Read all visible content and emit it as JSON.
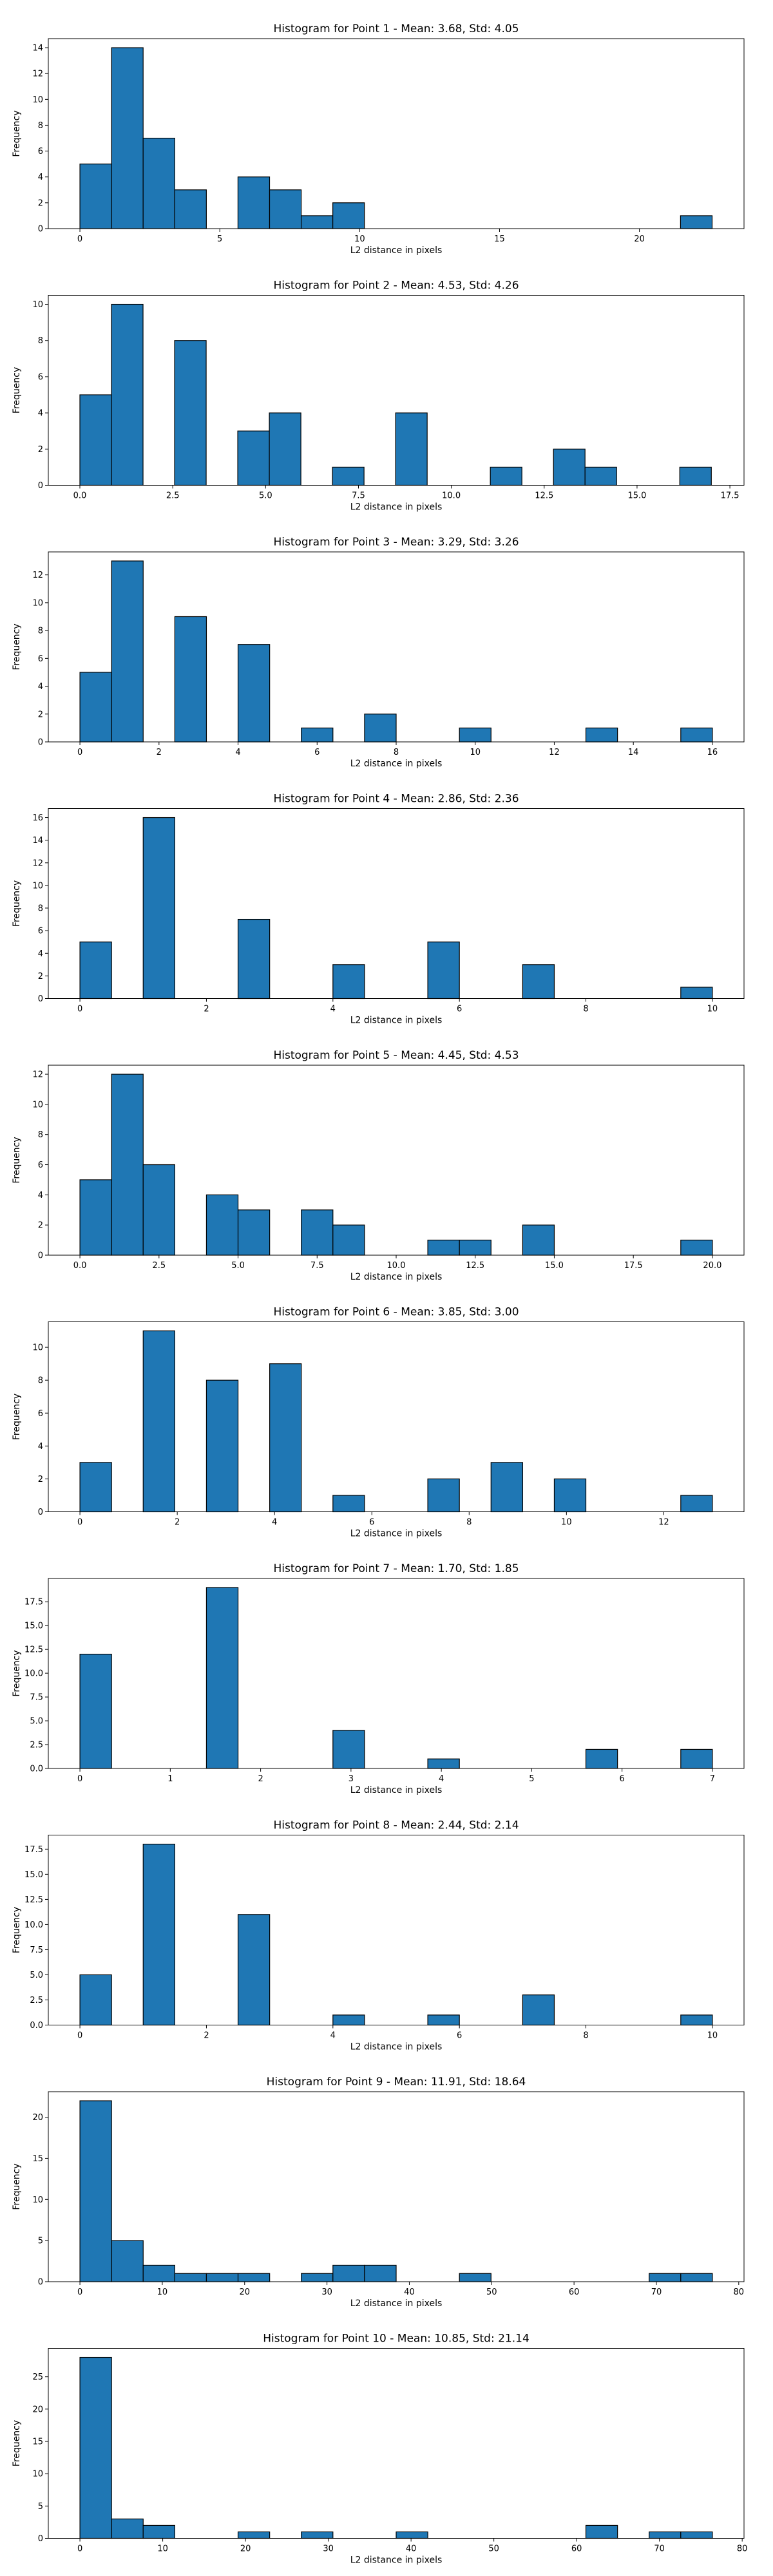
{
  "figure": {
    "background": "#ffffff",
    "bar_color": "#1f77b4",
    "edge_color": "#000000"
  },
  "chart_data": [
    {
      "type": "bar",
      "title": "Histogram for Point 1 - Mean: 3.68, Std: 4.05",
      "xlabel": "L2 distance in pixels",
      "ylabel": "Frequency",
      "xlim": [
        -1.13,
        23.74
      ],
      "ylim": [
        0,
        14.7
      ],
      "xticks": [
        0,
        5,
        10,
        15,
        20
      ],
      "xtick_labels": [
        "0",
        "5",
        "10",
        "15",
        "20"
      ],
      "yticks": [
        0,
        2,
        4,
        6,
        8,
        10,
        12,
        14
      ],
      "ytick_labels": [
        "0",
        "2",
        "4",
        "6",
        "8",
        "10",
        "12",
        "14"
      ],
      "bins": [
        [
          0,
          1.13,
          5
        ],
        [
          1.13,
          2.26,
          14
        ],
        [
          2.26,
          3.39,
          7
        ],
        [
          3.39,
          4.52,
          3
        ],
        [
          5.65,
          6.78,
          4
        ],
        [
          6.78,
          7.91,
          3
        ],
        [
          7.91,
          9.04,
          1
        ],
        [
          9.04,
          10.17,
          2
        ],
        [
          21.47,
          22.6,
          1
        ]
      ]
    },
    {
      "type": "bar",
      "title": "Histogram for Point 2 - Mean: 4.53, Std: 4.26",
      "xlabel": "L2 distance in pixels",
      "ylabel": "Frequency",
      "xlim": [
        -0.85,
        17.88
      ],
      "ylim": [
        0,
        10.5
      ],
      "xticks": [
        0,
        2.5,
        5,
        7.5,
        10,
        12.5,
        15,
        17.5
      ],
      "xtick_labels": [
        "0.0",
        "2.5",
        "5.0",
        "7.5",
        "10.0",
        "12.5",
        "15.0",
        "17.5"
      ],
      "yticks": [
        0,
        2,
        4,
        6,
        8,
        10
      ],
      "ytick_labels": [
        "0",
        "2",
        "4",
        "6",
        "8",
        "10"
      ],
      "bins": [
        [
          0,
          0.85,
          5
        ],
        [
          0.85,
          1.7,
          10
        ],
        [
          2.55,
          3.4,
          8
        ],
        [
          4.25,
          5.1,
          3
        ],
        [
          5.1,
          5.95,
          4
        ],
        [
          6.8,
          7.65,
          1
        ],
        [
          8.5,
          9.35,
          4
        ],
        [
          11.05,
          11.9,
          1
        ],
        [
          12.75,
          13.6,
          2
        ],
        [
          13.6,
          14.45,
          1
        ],
        [
          16.15,
          17.0,
          1
        ]
      ]
    },
    {
      "type": "bar",
      "title": "Histogram for Point 3 - Mean: 3.29, Std: 3.26",
      "xlabel": "L2 distance in pixels",
      "ylabel": "Frequency",
      "xlim": [
        -0.8,
        16.8
      ],
      "ylim": [
        0,
        13.65
      ],
      "xticks": [
        0,
        2,
        4,
        6,
        8,
        10,
        12,
        14,
        16
      ],
      "xtick_labels": [
        "0",
        "2",
        "4",
        "6",
        "8",
        "10",
        "12",
        "14",
        "16"
      ],
      "yticks": [
        0,
        2,
        4,
        6,
        8,
        10,
        12
      ],
      "ytick_labels": [
        "0",
        "2",
        "4",
        "6",
        "8",
        "10",
        "12"
      ],
      "bins": [
        [
          0,
          0.8,
          5
        ],
        [
          0.8,
          1.6,
          13
        ],
        [
          2.4,
          3.2,
          9
        ],
        [
          4.0,
          4.8,
          7
        ],
        [
          5.6,
          6.4,
          1
        ],
        [
          7.2,
          8.0,
          2
        ],
        [
          9.6,
          10.4,
          1
        ],
        [
          12.8,
          13.6,
          1
        ],
        [
          15.2,
          16.0,
          1
        ]
      ]
    },
    {
      "type": "bar",
      "title": "Histogram for Point 4 - Mean: 2.86, Std: 2.36",
      "xlabel": "L2 distance in pixels",
      "ylabel": "Frequency",
      "xlim": [
        -0.5,
        10.5
      ],
      "ylim": [
        0,
        16.8
      ],
      "xticks": [
        0,
        2,
        4,
        6,
        8,
        10
      ],
      "xtick_labels": [
        "0",
        "2",
        "4",
        "6",
        "8",
        "10"
      ],
      "yticks": [
        0,
        2,
        4,
        6,
        8,
        10,
        12,
        14,
        16
      ],
      "ytick_labels": [
        "0",
        "2",
        "4",
        "6",
        "8",
        "10",
        "12",
        "14",
        "16"
      ],
      "bins": [
        [
          0,
          0.5,
          5
        ],
        [
          1.0,
          1.5,
          16
        ],
        [
          2.5,
          3.0,
          7
        ],
        [
          4.0,
          4.5,
          3
        ],
        [
          5.5,
          6.0,
          5
        ],
        [
          7.0,
          7.5,
          3
        ],
        [
          9.5,
          10.0,
          1
        ]
      ]
    },
    {
      "type": "bar",
      "title": "Histogram for Point 5 - Mean: 4.45, Std: 4.53",
      "xlabel": "L2 distance in pixels",
      "ylabel": "Frequency",
      "xlim": [
        -1.0,
        21.0
      ],
      "ylim": [
        0,
        12.6
      ],
      "xticks": [
        0,
        2.5,
        5,
        7.5,
        10,
        12.5,
        15,
        17.5,
        20
      ],
      "xtick_labels": [
        "0.0",
        "2.5",
        "5.0",
        "7.5",
        "10.0",
        "12.5",
        "15.0",
        "17.5",
        "20.0"
      ],
      "yticks": [
        0,
        2,
        4,
        6,
        8,
        10,
        12
      ],
      "ytick_labels": [
        "0",
        "2",
        "4",
        "6",
        "8",
        "10",
        "12"
      ],
      "bins": [
        [
          0,
          1,
          5
        ],
        [
          1,
          2,
          12
        ],
        [
          2,
          3,
          6
        ],
        [
          4,
          5,
          4
        ],
        [
          5,
          6,
          3
        ],
        [
          7,
          8,
          3
        ],
        [
          8,
          9,
          2
        ],
        [
          11,
          12,
          1
        ],
        [
          12,
          13,
          1
        ],
        [
          14,
          15,
          2
        ],
        [
          19,
          20,
          1
        ]
      ]
    },
    {
      "type": "bar",
      "title": "Histogram for Point 6 - Mean: 3.85, Std: 3.00",
      "xlabel": "L2 distance in pixels",
      "ylabel": "Frequency",
      "xlim": [
        -0.65,
        13.65
      ],
      "ylim": [
        0,
        11.55
      ],
      "xticks": [
        0,
        2,
        4,
        6,
        8,
        10,
        12
      ],
      "xtick_labels": [
        "0",
        "2",
        "4",
        "6",
        "8",
        "10",
        "12"
      ],
      "yticks": [
        0,
        2,
        4,
        6,
        8,
        10
      ],
      "ytick_labels": [
        "0",
        "2",
        "4",
        "6",
        "8",
        "10"
      ],
      "bins": [
        [
          0,
          0.65,
          3
        ],
        [
          1.3,
          1.95,
          11
        ],
        [
          2.6,
          3.25,
          8
        ],
        [
          3.9,
          4.55,
          9
        ],
        [
          5.2,
          5.85,
          1
        ],
        [
          7.15,
          7.8,
          2
        ],
        [
          8.45,
          9.1,
          3
        ],
        [
          9.75,
          10.4,
          2
        ],
        [
          12.35,
          13.0,
          1
        ]
      ]
    },
    {
      "type": "bar",
      "title": "Histogram for Point 7 - Mean: 1.70, Std: 1.85",
      "xlabel": "L2 distance in pixels",
      "ylabel": "Frequency",
      "xlim": [
        -0.35,
        7.35
      ],
      "ylim": [
        0,
        19.95
      ],
      "xticks": [
        0,
        1,
        2,
        3,
        4,
        5,
        6,
        7
      ],
      "xtick_labels": [
        "0",
        "1",
        "2",
        "3",
        "4",
        "5",
        "6",
        "7"
      ],
      "yticks": [
        0,
        2.5,
        5,
        7.5,
        10,
        12.5,
        15,
        17.5
      ],
      "ytick_labels": [
        "0.0",
        "2.5",
        "5.0",
        "7.5",
        "10.0",
        "12.5",
        "15.0",
        "17.5"
      ],
      "bins": [
        [
          0,
          0.35,
          12
        ],
        [
          1.4,
          1.75,
          19
        ],
        [
          2.8,
          3.15,
          4
        ],
        [
          3.85,
          4.2,
          1
        ],
        [
          5.6,
          5.95,
          2
        ],
        [
          6.65,
          7.0,
          2
        ]
      ]
    },
    {
      "type": "bar",
      "title": "Histogram for Point 8 - Mean: 2.44, Std: 2.14",
      "xlabel": "L2 distance in pixels",
      "ylabel": "Frequency",
      "xlim": [
        -0.5,
        10.5
      ],
      "ylim": [
        0,
        18.9
      ],
      "xticks": [
        0,
        2,
        4,
        6,
        8,
        10
      ],
      "xtick_labels": [
        "0",
        "2",
        "4",
        "6",
        "8",
        "10"
      ],
      "yticks": [
        0,
        2.5,
        5,
        7.5,
        10,
        12.5,
        15,
        17.5
      ],
      "ytick_labels": [
        "0.0",
        "2.5",
        "5.0",
        "7.5",
        "10.0",
        "12.5",
        "15.0",
        "17.5"
      ],
      "bins": [
        [
          0,
          0.5,
          5
        ],
        [
          1.0,
          1.5,
          18
        ],
        [
          2.5,
          3.0,
          11
        ],
        [
          4.0,
          4.5,
          1
        ],
        [
          5.5,
          6.0,
          1
        ],
        [
          7.0,
          7.5,
          3
        ],
        [
          9.5,
          10.0,
          1
        ]
      ]
    },
    {
      "type": "bar",
      "title": "Histogram for Point 9 - Mean: 11.91, Std: 18.64",
      "xlabel": "L2 distance in pixels",
      "ylabel": "Frequency",
      "xlim": [
        -3.84,
        80.64
      ],
      "ylim": [
        0,
        23.1
      ],
      "xticks": [
        0,
        10,
        20,
        30,
        40,
        50,
        60,
        70,
        80
      ],
      "xtick_labels": [
        "0",
        "10",
        "20",
        "30",
        "40",
        "50",
        "60",
        "70",
        "80"
      ],
      "yticks": [
        0,
        5,
        10,
        15,
        20
      ],
      "ytick_labels": [
        "0",
        "5",
        "10",
        "15",
        "20"
      ],
      "bins": [
        [
          0,
          3.84,
          22
        ],
        [
          3.84,
          7.68,
          5
        ],
        [
          7.68,
          11.52,
          2
        ],
        [
          11.52,
          15.36,
          1
        ],
        [
          15.36,
          19.2,
          1
        ],
        [
          19.2,
          23.04,
          1
        ],
        [
          26.88,
          30.72,
          1
        ],
        [
          30.72,
          34.56,
          2
        ],
        [
          34.56,
          38.4,
          2
        ],
        [
          46.08,
          49.92,
          1
        ],
        [
          69.12,
          72.96,
          1
        ],
        [
          72.96,
          76.8,
          1
        ]
      ]
    },
    {
      "type": "bar",
      "title": "Histogram for Point 10 - Mean: 10.85, Std: 21.14",
      "xlabel": "L2 distance in pixels",
      "ylabel": "Frequency",
      "xlim": [
        -3.82,
        80.22
      ],
      "ylim": [
        0,
        29.4
      ],
      "xticks": [
        0,
        10,
        20,
        30,
        40,
        50,
        60,
        70,
        80
      ],
      "xtick_labels": [
        "0",
        "10",
        "20",
        "30",
        "40",
        "50",
        "60",
        "70",
        "80"
      ],
      "yticks": [
        0,
        5,
        10,
        15,
        20,
        25
      ],
      "ytick_labels": [
        "0",
        "5",
        "10",
        "15",
        "20",
        "25"
      ],
      "bins": [
        [
          0,
          3.82,
          28
        ],
        [
          3.82,
          7.64,
          3
        ],
        [
          7.64,
          11.46,
          2
        ],
        [
          19.1,
          22.92,
          1
        ],
        [
          26.74,
          30.56,
          1
        ],
        [
          38.2,
          42.02,
          1
        ],
        [
          61.12,
          64.94,
          2
        ],
        [
          68.76,
          72.58,
          1
        ],
        [
          72.58,
          76.4,
          1
        ]
      ]
    }
  ]
}
